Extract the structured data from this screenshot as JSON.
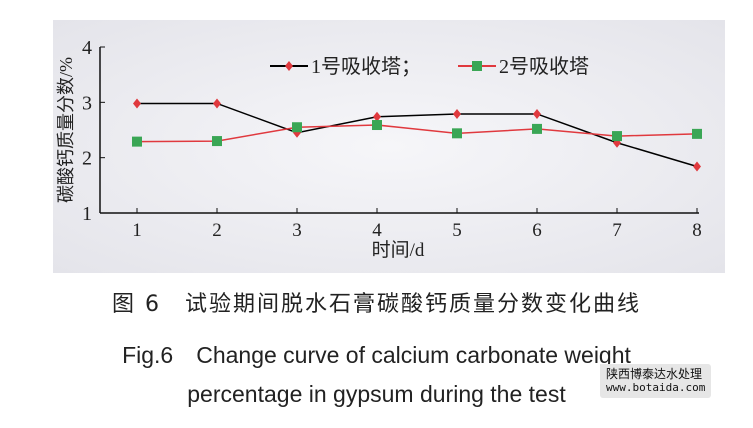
{
  "chart_data": {
    "type": "line",
    "x": [
      1,
      2,
      3,
      4,
      5,
      6,
      7,
      8
    ],
    "xlabel": "时间/d",
    "ylabel": "碳酸钙质量分数/%",
    "xlim": [
      0.5,
      8
    ],
    "ylim": [
      1,
      4
    ],
    "yticks": [
      1,
      2,
      3,
      4
    ],
    "legend_position": "top-center",
    "grid": false,
    "series": [
      {
        "name": "1号吸收塔；",
        "values": [
          2.98,
          2.98,
          2.45,
          2.74,
          2.79,
          2.79,
          2.27,
          1.84
        ],
        "line_color": "#000000",
        "marker_color": "#e0393e",
        "marker": "diamond"
      },
      {
        "name": "2号吸收塔",
        "values": [
          2.29,
          2.3,
          2.55,
          2.59,
          2.44,
          2.52,
          2.39,
          2.43
        ],
        "line_color": "#e0393e",
        "marker_color": "#3aa655",
        "marker": "square"
      }
    ]
  },
  "caption": {
    "cn": "图 6　试验期间脱水石膏碳酸钙质量分数变化曲线",
    "en_line1": "Fig.6　Change curve of calcium carbonate weight",
    "en_line2": "percentage in gypsum during the test"
  },
  "watermark": {
    "line1": "陕西博泰达水处理",
    "line2": "www.botaida.com"
  }
}
